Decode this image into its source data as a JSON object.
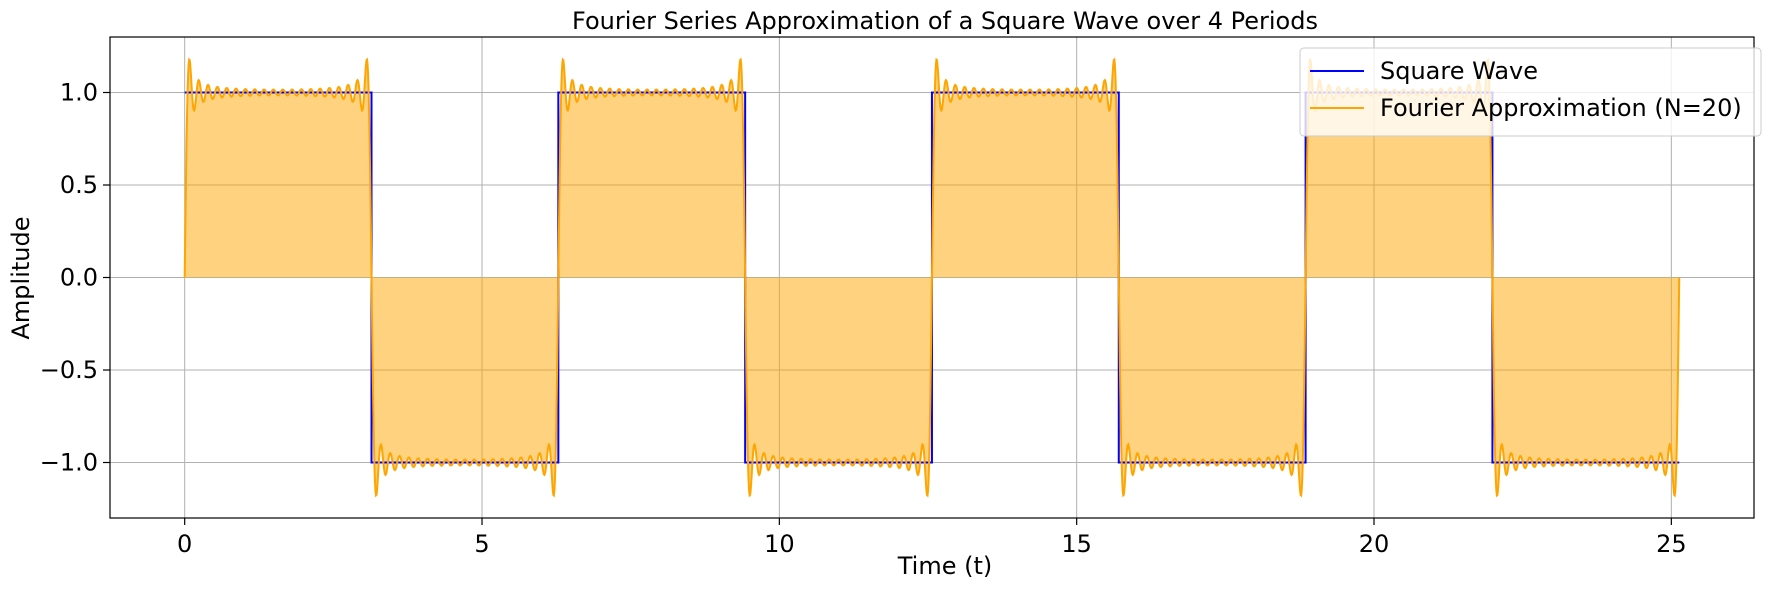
{
  "chart_data": {
    "type": "line",
    "title": "Fourier Series Approximation of a Square Wave over 4 Periods",
    "xlabel": "Time (t)",
    "ylabel": "Amplitude",
    "xlim": [
      -1.256,
      26.39
    ],
    "ylim": [
      -1.3,
      1.3
    ],
    "x_ticks": [
      0,
      5,
      10,
      15,
      20,
      25
    ],
    "x_tick_labels": [
      "0",
      "5",
      "10",
      "15",
      "20",
      "25"
    ],
    "y_ticks": [
      1.0,
      0.5,
      0.0,
      -0.5,
      -1.0
    ],
    "y_tick_labels": [
      "1.0",
      "0.5",
      "0.0",
      "−0.5",
      "−1.0"
    ],
    "grid": true,
    "legend_position": "top-right",
    "t_range": [
      0,
      25.1327
    ],
    "periods": 4,
    "period": 6.2832,
    "series": [
      {
        "name": "Square Wave",
        "color": "#0000ff",
        "function": "sign(sin(t))",
        "amplitude": 1.0
      },
      {
        "name": "Fourier Approximation (N=20)",
        "color": "#ffa500",
        "fill_color": "#ffa500",
        "fill_opacity": 0.5,
        "function": "fourier_square",
        "N": 20,
        "overshoot_peak": 1.18
      }
    ]
  }
}
